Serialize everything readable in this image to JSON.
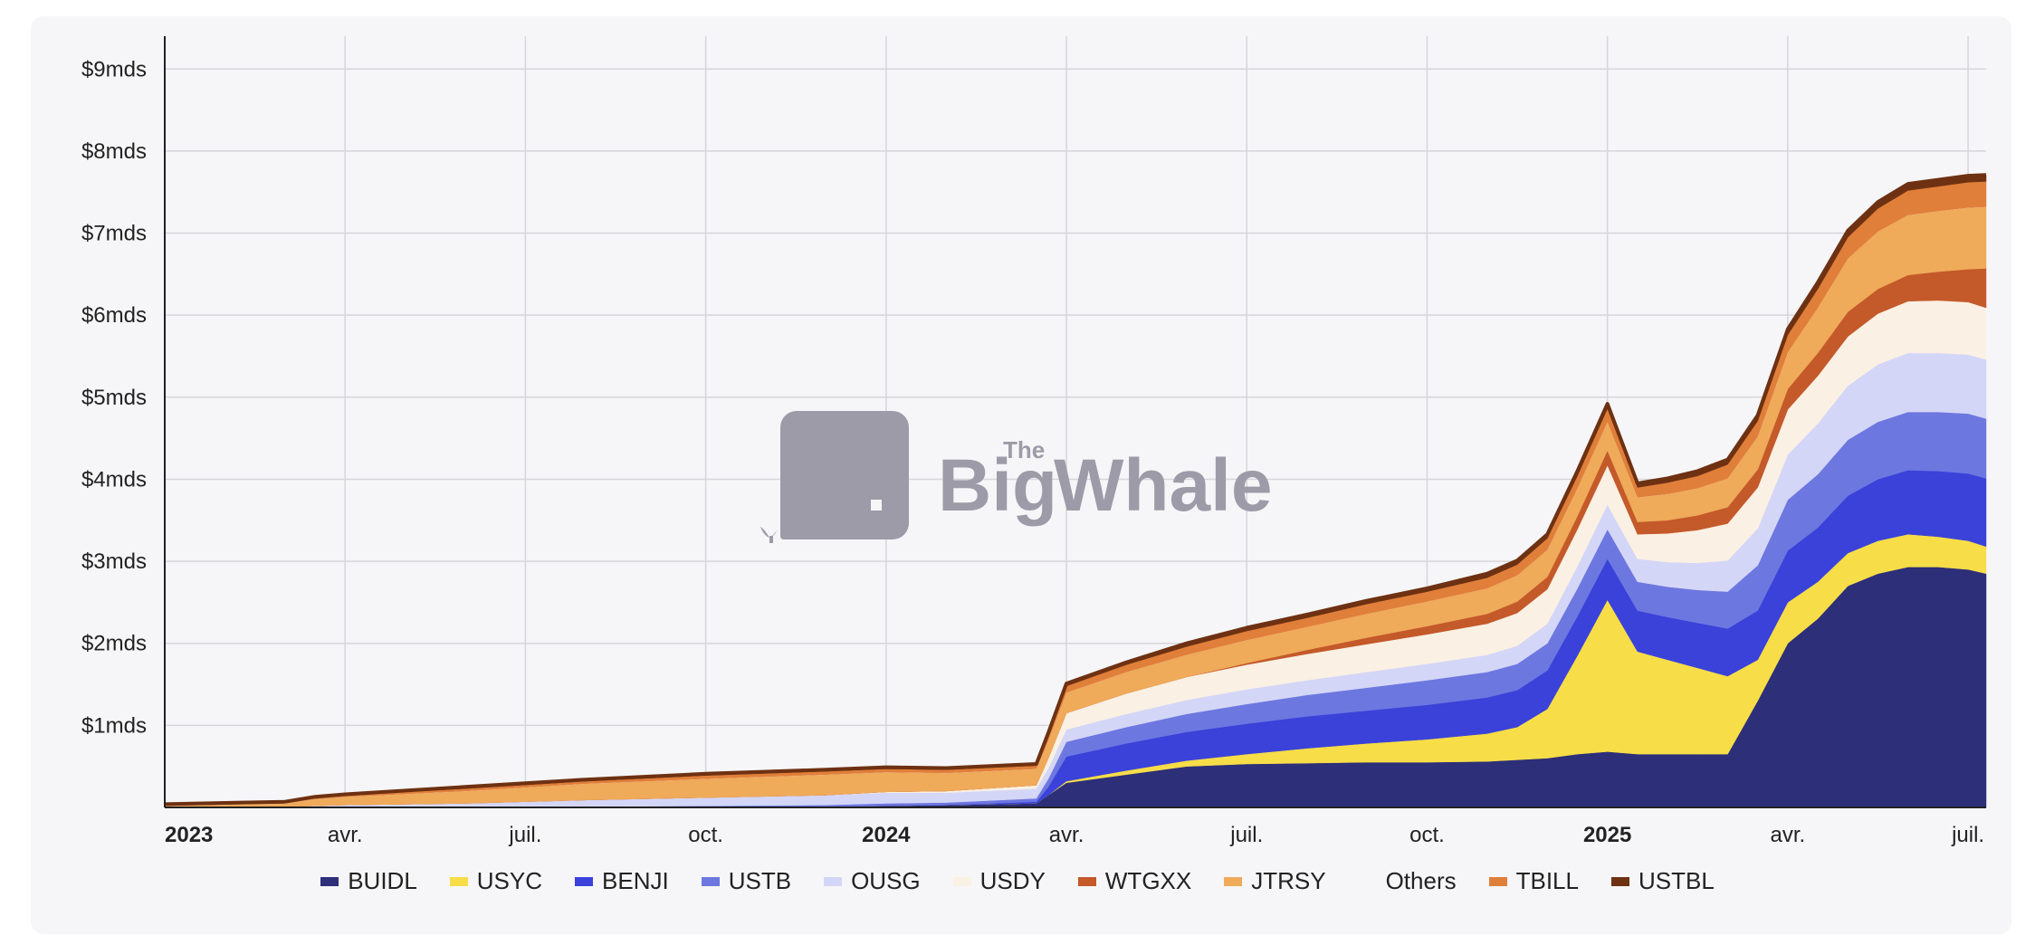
{
  "chart_data": {
    "type": "area",
    "stacked": true,
    "y_tick_labels": [
      "$1mds",
      "$2mds",
      "$3mds",
      "$4mds",
      "$5mds",
      "$6mds",
      "$7mds",
      "$8mds",
      "$9mds"
    ],
    "y_ticks": [
      1,
      2,
      3,
      4,
      5,
      6,
      7,
      8,
      9
    ],
    "ylim": [
      0,
      9.4
    ],
    "y_unit": "mds",
    "x_tick_labels": [
      {
        "label": "2023",
        "t": 0,
        "bold": true
      },
      {
        "label": "avr.",
        "t": 3,
        "bold": false
      },
      {
        "label": "juil.",
        "t": 6,
        "bold": false
      },
      {
        "label": "oct.",
        "t": 9,
        "bold": false
      },
      {
        "label": "2024",
        "t": 12,
        "bold": true
      },
      {
        "label": "avr.",
        "t": 15,
        "bold": false
      },
      {
        "label": "juil.",
        "t": 18,
        "bold": false
      },
      {
        "label": "oct.",
        "t": 21,
        "bold": false
      },
      {
        "label": "2025",
        "t": 24,
        "bold": true
      },
      {
        "label": "avr.",
        "t": 27,
        "bold": false
      },
      {
        "label": "juil.",
        "t": 30,
        "bold": false
      }
    ],
    "xlim": [
      0,
      30.3
    ],
    "x_unit": "months since Jan 2023",
    "grid": true,
    "legend_position": "bottom",
    "x": [
      0,
      2,
      2.5,
      3,
      5,
      7,
      9,
      11,
      12,
      13,
      14.5,
      14.7,
      15,
      16,
      17,
      18,
      19,
      20,
      21,
      22,
      22.5,
      23,
      23.5,
      24,
      24.5,
      25,
      25.5,
      26,
      26.5,
      27,
      27.5,
      28,
      28.5,
      29,
      29.5,
      30,
      30.3
    ],
    "series": [
      {
        "name": "BUIDL",
        "color": "#2d2f78",
        "values": [
          0,
          0,
          0,
          0,
          0,
          0,
          0,
          0.01,
          0.02,
          0.03,
          0.05,
          0.15,
          0.3,
          0.4,
          0.5,
          0.53,
          0.54,
          0.55,
          0.55,
          0.56,
          0.58,
          0.6,
          0.65,
          0.68,
          0.65,
          0.65,
          0.65,
          0.65,
          1.3,
          2.0,
          2.3,
          2.7,
          2.85,
          2.93,
          2.93,
          2.9,
          2.85
        ]
      },
      {
        "name": "USYC",
        "color": "#f7dd48",
        "values": [
          0,
          0,
          0,
          0,
          0,
          0,
          0,
          0,
          0,
          0,
          0,
          0,
          0.02,
          0.05,
          0.07,
          0.12,
          0.18,
          0.23,
          0.28,
          0.34,
          0.4,
          0.6,
          1.2,
          1.85,
          1.25,
          1.15,
          1.05,
          0.95,
          0.5,
          0.5,
          0.45,
          0.4,
          0.4,
          0.4,
          0.37,
          0.35,
          0.33
        ]
      },
      {
        "name": "BENJI",
        "color": "#3a42d9",
        "values": [
          0,
          0,
          0,
          0,
          0,
          0,
          0,
          0,
          0,
          0,
          0.02,
          0.1,
          0.3,
          0.33,
          0.35,
          0.37,
          0.39,
          0.4,
          0.42,
          0.44,
          0.45,
          0.47,
          0.48,
          0.5,
          0.5,
          0.52,
          0.55,
          0.58,
          0.6,
          0.63,
          0.66,
          0.7,
          0.75,
          0.78,
          0.8,
          0.82,
          0.83
        ]
      },
      {
        "name": "USTB",
        "color": "#6d77e0",
        "values": [
          0,
          0,
          0,
          0,
          0,
          0.01,
          0.02,
          0.02,
          0.03,
          0.03,
          0.04,
          0.1,
          0.18,
          0.2,
          0.22,
          0.24,
          0.26,
          0.28,
          0.3,
          0.31,
          0.32,
          0.33,
          0.34,
          0.36,
          0.35,
          0.37,
          0.4,
          0.45,
          0.55,
          0.62,
          0.65,
          0.68,
          0.7,
          0.71,
          0.72,
          0.73,
          0.73
        ]
      },
      {
        "name": "OUSG",
        "color": "#d4d6f7",
        "values": [
          0,
          0.01,
          0.02,
          0.03,
          0.05,
          0.08,
          0.1,
          0.12,
          0.13,
          0.12,
          0.12,
          0.13,
          0.15,
          0.16,
          0.17,
          0.18,
          0.18,
          0.19,
          0.2,
          0.21,
          0.22,
          0.24,
          0.27,
          0.3,
          0.28,
          0.3,
          0.33,
          0.38,
          0.45,
          0.55,
          0.62,
          0.66,
          0.7,
          0.72,
          0.72,
          0.72,
          0.72
        ]
      },
      {
        "name": "USDY",
        "color": "#faf0e3",
        "values": [
          0,
          0,
          0,
          0,
          0,
          0,
          0,
          0,
          0.01,
          0.02,
          0.04,
          0.12,
          0.2,
          0.25,
          0.28,
          0.3,
          0.32,
          0.34,
          0.36,
          0.38,
          0.4,
          0.42,
          0.45,
          0.48,
          0.3,
          0.35,
          0.4,
          0.45,
          0.5,
          0.55,
          0.58,
          0.6,
          0.62,
          0.63,
          0.64,
          0.64,
          0.63
        ]
      },
      {
        "name": "WTGXX",
        "color": "#c4592a",
        "values": [
          0,
          0,
          0,
          0,
          0,
          0,
          0,
          0,
          0,
          0,
          0,
          0,
          0,
          0,
          0,
          0.02,
          0.05,
          0.08,
          0.1,
          0.12,
          0.14,
          0.15,
          0.16,
          0.18,
          0.15,
          0.16,
          0.18,
          0.2,
          0.22,
          0.25,
          0.28,
          0.3,
          0.3,
          0.32,
          0.35,
          0.4,
          0.48
        ]
      },
      {
        "name": "JTRSY",
        "color": "#efaa5a",
        "values": [
          0.02,
          0.04,
          0.08,
          0.1,
          0.15,
          0.2,
          0.23,
          0.25,
          0.24,
          0.22,
          0.2,
          0.22,
          0.25,
          0.26,
          0.27,
          0.28,
          0.28,
          0.29,
          0.3,
          0.31,
          0.32,
          0.33,
          0.34,
          0.35,
          0.3,
          0.32,
          0.33,
          0.35,
          0.4,
          0.45,
          0.55,
          0.65,
          0.7,
          0.73,
          0.74,
          0.75,
          0.75
        ]
      },
      {
        "name": "Others",
        "color": "#f6f6f8",
        "values": [
          0,
          0,
          0,
          0,
          0,
          0,
          0,
          0,
          0,
          0,
          0,
          0,
          0,
          0,
          0,
          0,
          0,
          0,
          0,
          0,
          0,
          0,
          0,
          0,
          0,
          0,
          0,
          0,
          0,
          0,
          0,
          0,
          0,
          0,
          0,
          0,
          0
        ]
      },
      {
        "name": "TBILL",
        "color": "#e07f3a",
        "values": [
          0.01,
          0.01,
          0.02,
          0.02,
          0.03,
          0.03,
          0.04,
          0.04,
          0.04,
          0.04,
          0.04,
          0.06,
          0.08,
          0.09,
          0.1,
          0.11,
          0.11,
          0.12,
          0.12,
          0.13,
          0.13,
          0.14,
          0.15,
          0.16,
          0.12,
          0.14,
          0.15,
          0.17,
          0.19,
          0.21,
          0.23,
          0.26,
          0.28,
          0.3,
          0.3,
          0.31,
          0.31
        ]
      },
      {
        "name": "USTBL",
        "color": "#6e3112",
        "values": [
          0.01,
          0.01,
          0.01,
          0.01,
          0.02,
          0.02,
          0.02,
          0.02,
          0.02,
          0.02,
          0.02,
          0.03,
          0.03,
          0.03,
          0.04,
          0.04,
          0.04,
          0.04,
          0.04,
          0.05,
          0.05,
          0.05,
          0.06,
          0.06,
          0.05,
          0.05,
          0.06,
          0.06,
          0.07,
          0.07,
          0.08,
          0.08,
          0.08,
          0.08,
          0.08,
          0.08,
          0.08
        ]
      }
    ]
  },
  "watermark": {
    "small_word": "The",
    "left_word": "Big",
    "right_word": "Whale"
  }
}
